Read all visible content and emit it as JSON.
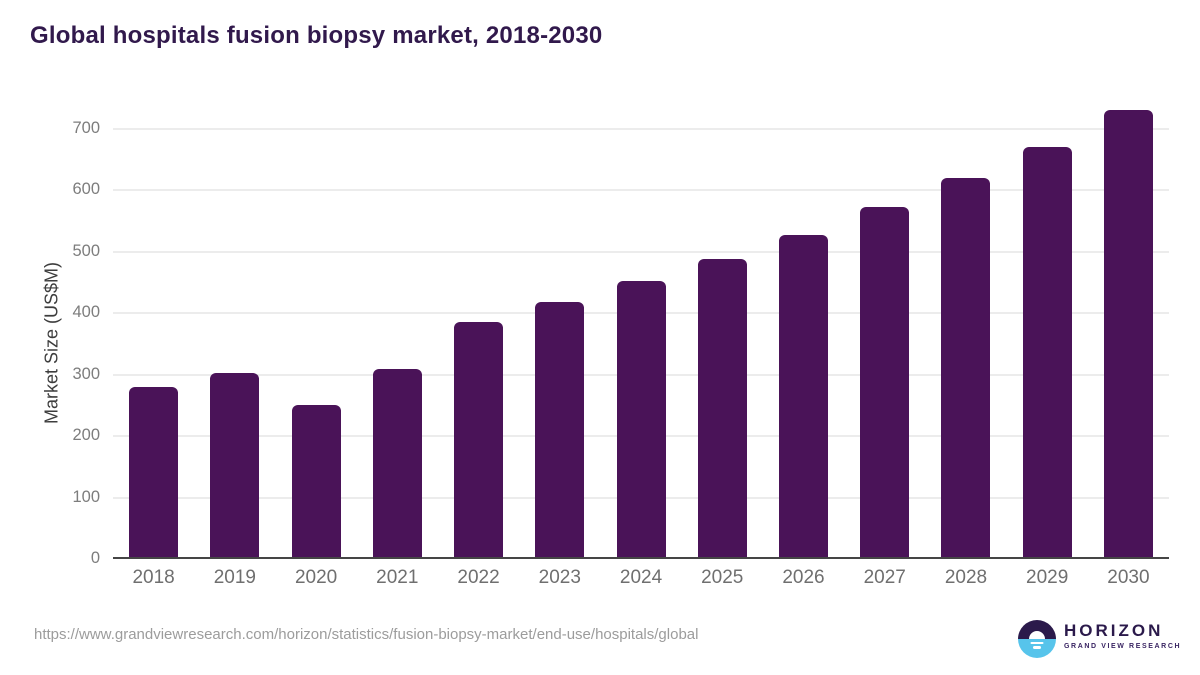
{
  "page": {
    "title": "Global hospitals fusion biopsy market, 2018-2030",
    "source_url": "https://www.grandviewresearch.com/horizon/statistics/fusion-biopsy-market/end-use/hospitals/global"
  },
  "logo": {
    "brand": "HORIZON",
    "tagline": "GRAND VIEW RESEARCH",
    "icon": "horizon-sunset-icon",
    "icon_colors": {
      "top": "#2B1A4B",
      "bottom": "#57C4EB"
    }
  },
  "chart_data": {
    "type": "bar",
    "title": "Global hospitals fusion biopsy market, 2018-2030",
    "categories": [
      "2018",
      "2019",
      "2020",
      "2021",
      "2022",
      "2023",
      "2024",
      "2025",
      "2026",
      "2027",
      "2028",
      "2029",
      "2030"
    ],
    "values": [
      277,
      300,
      248,
      306,
      382,
      415,
      449,
      485,
      525,
      570,
      617,
      668,
      728
    ],
    "xlabel": "",
    "ylabel": "Market Size (US$M)",
    "ylim": [
      0,
      700
    ],
    "yticks": [
      0,
      100,
      200,
      300,
      400,
      500,
      600,
      700
    ],
    "grid": true,
    "legend": false,
    "bar_color": "#4A1358",
    "units": "US$M"
  },
  "colors": {
    "title": "#31194C",
    "bar": "#4A1358",
    "grid": "#ECECEC",
    "axis": "#454545",
    "tick_label": "#7D7D7D",
    "x_label": "#6F6F6F",
    "footer": "#9C9C9C",
    "background": "#FFFFFF"
  }
}
